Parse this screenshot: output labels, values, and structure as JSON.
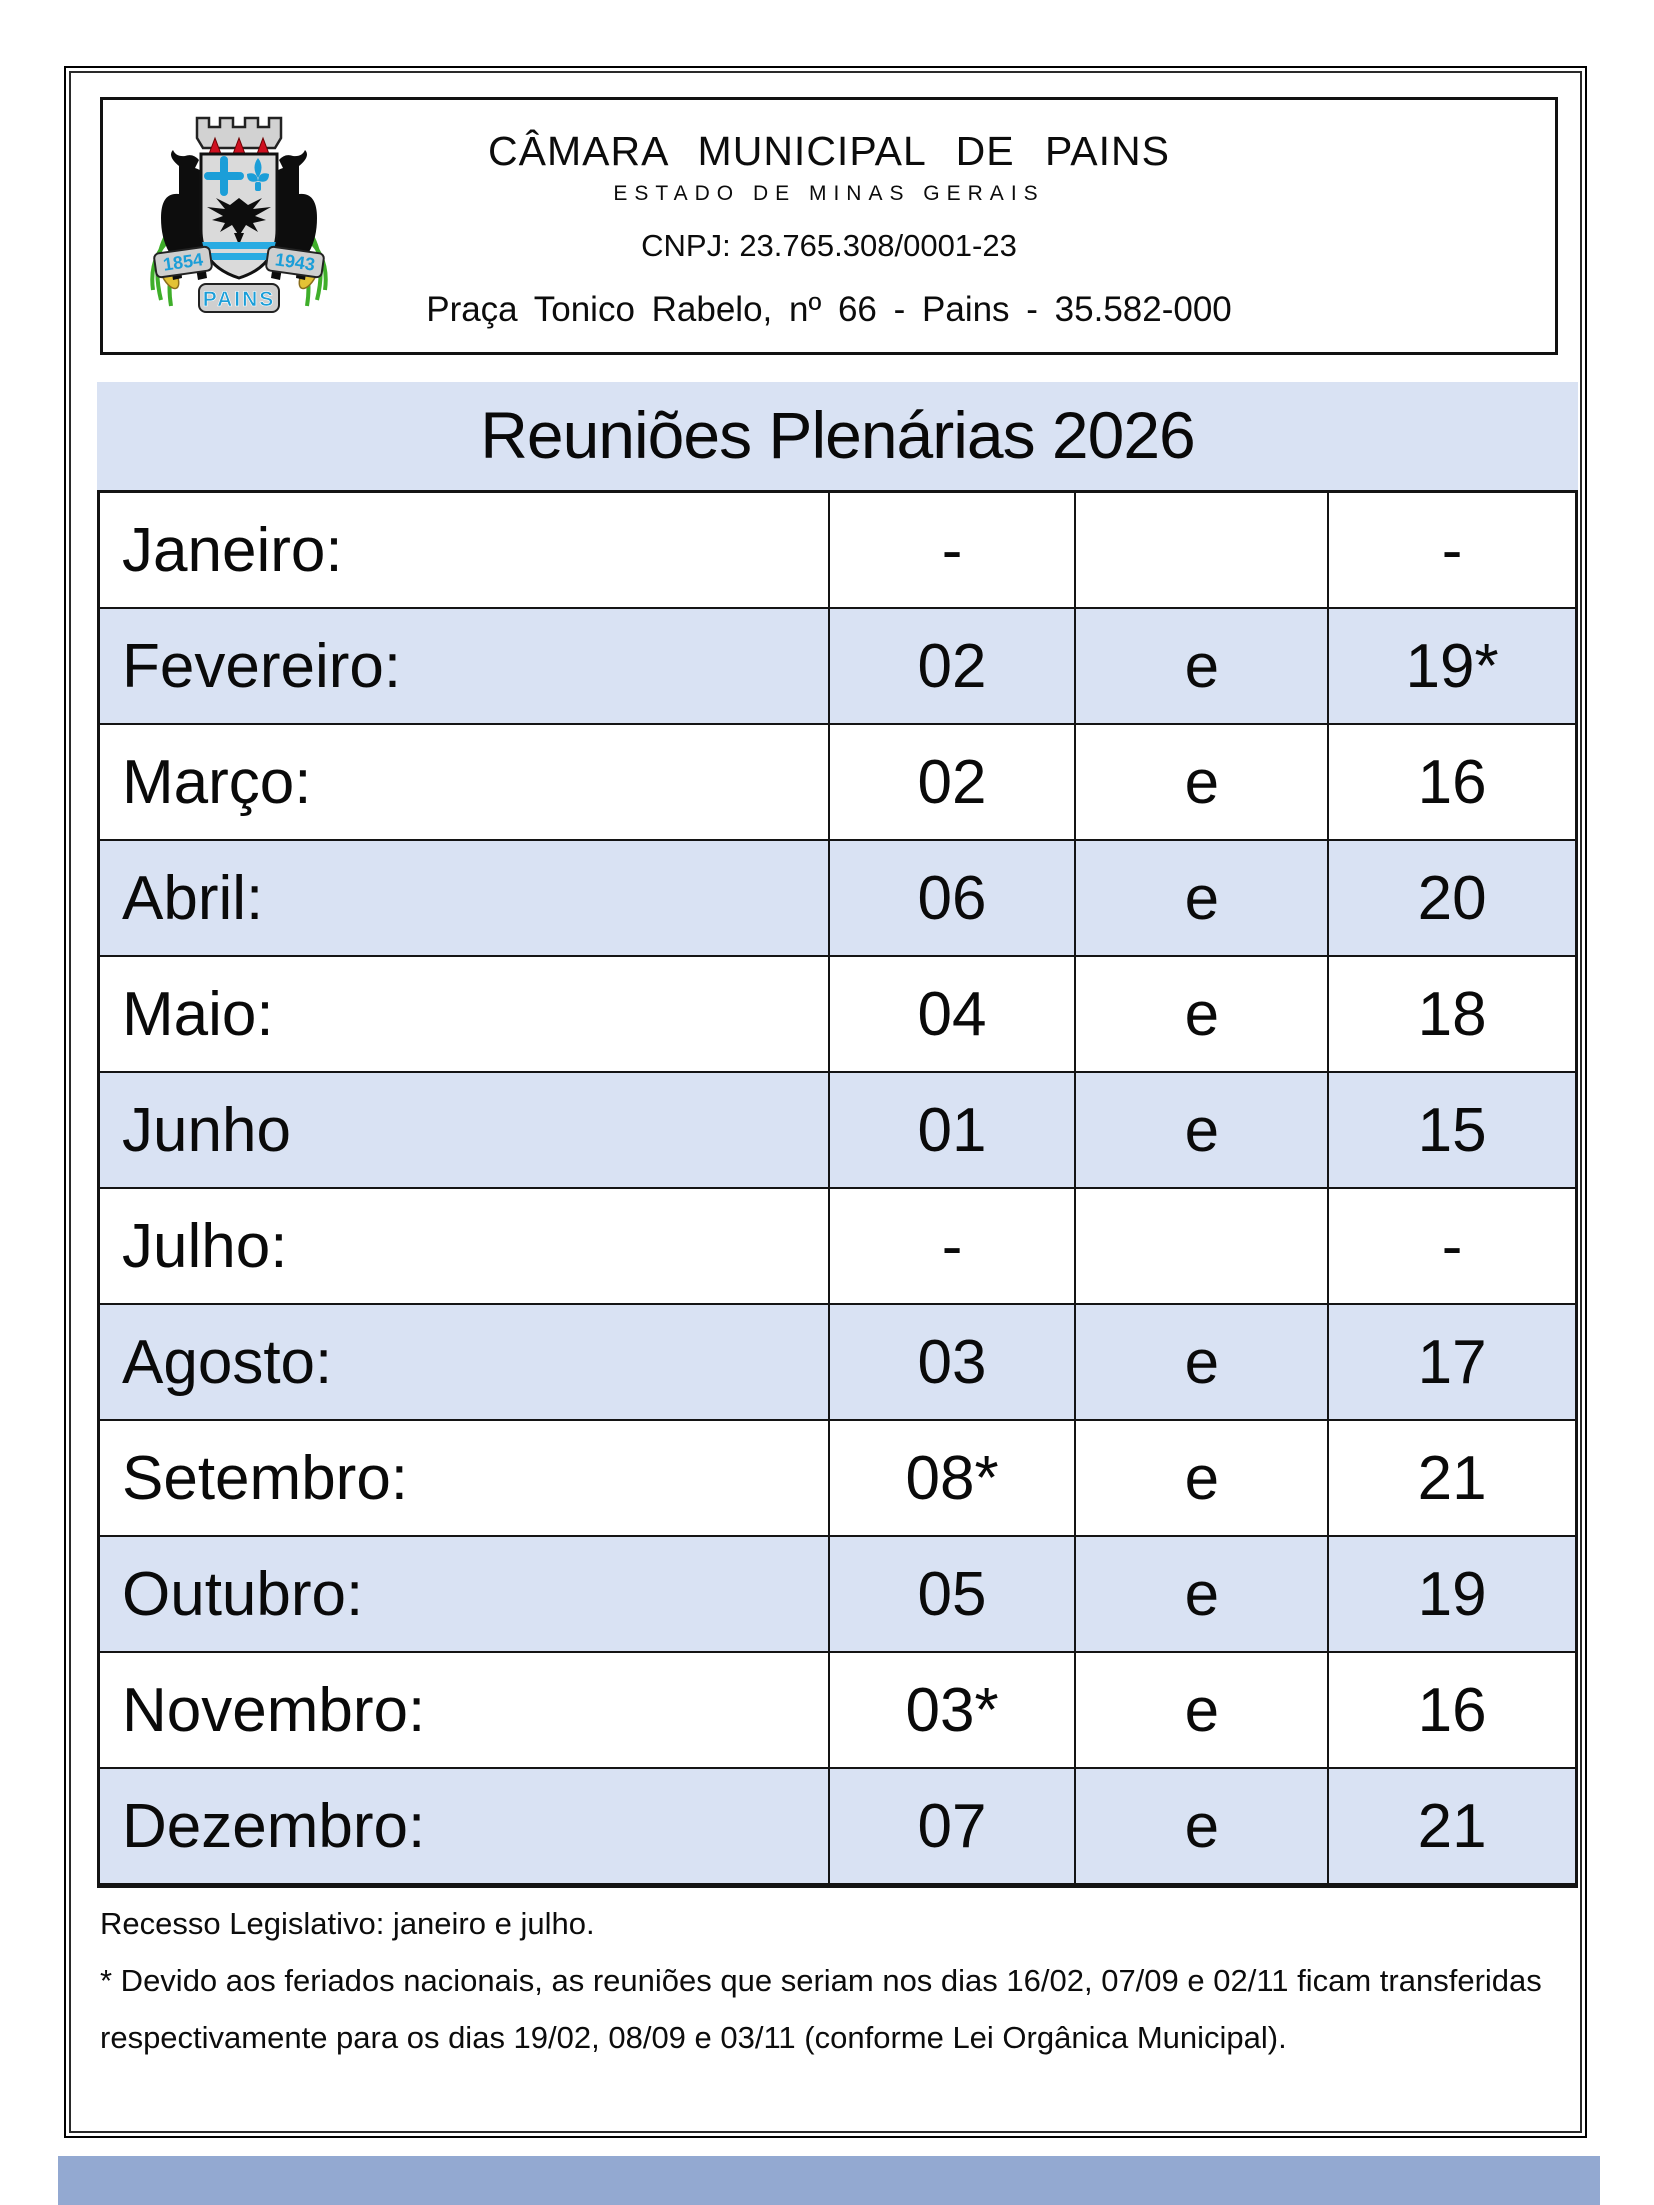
{
  "page": {
    "header": {
      "org_name": "CÂMARA MUNICIPAL DE PAINS",
      "state_line": "ESTADO DE MINAS GERAIS",
      "cnpj_line": "CNPJ: 23.765.308/0001-23",
      "address_line": "Praça Tonico Rabelo, nº 66 - Pains - 35.582-000",
      "crest": {
        "year_left": "1854",
        "year_right": "1943",
        "city_name": "PAINS"
      }
    },
    "title": "Reuniões Plenárias 2026",
    "table": {
      "rows": [
        {
          "month": "Janeiro:",
          "day1": "-",
          "conj": "",
          "day2": "-",
          "shaded": false
        },
        {
          "month": "Fevereiro:",
          "day1": "02",
          "conj": "e",
          "day2": "19*",
          "shaded": true
        },
        {
          "month": "Março:",
          "day1": "02",
          "conj": "e",
          "day2": "16",
          "shaded": false
        },
        {
          "month": "Abril:",
          "day1": "06",
          "conj": "e",
          "day2": "20",
          "shaded": true
        },
        {
          "month": "Maio:",
          "day1": "04",
          "conj": "e",
          "day2": "18",
          "shaded": false
        },
        {
          "month": "Junho",
          "day1": "01",
          "conj": "e",
          "day2": "15",
          "shaded": true
        },
        {
          "month": "Julho:",
          "day1": "-",
          "conj": "",
          "day2": "-",
          "shaded": false
        },
        {
          "month": "Agosto:",
          "day1": "03",
          "conj": "e",
          "day2": "17",
          "shaded": true
        },
        {
          "month": "Setembro:",
          "day1": "08*",
          "conj": "e",
          "day2": "21",
          "shaded": false
        },
        {
          "month": "Outubro:",
          "day1": "05",
          "conj": "e",
          "day2": "19",
          "shaded": true
        },
        {
          "month": "Novembro:",
          "day1": "03*",
          "conj": "e",
          "day2": "16",
          "shaded": false
        },
        {
          "month": "Dezembro:",
          "day1": "07",
          "conj": "e",
          "day2": "21",
          "shaded": true
        }
      ]
    },
    "notes": {
      "recesso": "Recesso Legislativo:  janeiro e julho.",
      "note_line1": "* Devido aos feriados nacionais, as reuniões que seriam nos dias 16/02, 07/09 e 02/11 ficam transferidas",
      "note_line2": "respectivamente para os dias 19/02, 08/09 e 03/11 (conforme Lei Orgânica Municipal)."
    },
    "colors": {
      "shaded_row": "#d9e2f3",
      "title_band": "#d9e2f3",
      "bottom_bar": "#93a9d1",
      "crest_blue": "#1b9ed8",
      "crest_red": "#cf1020",
      "crest_green": "#3fae2a"
    }
  }
}
